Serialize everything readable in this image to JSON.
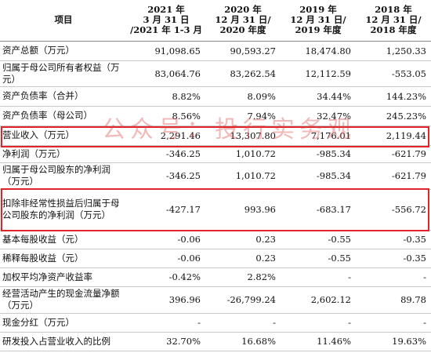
{
  "columns": {
    "item": "项目",
    "c2021": [
      "2021 年",
      "3 月 31 日",
      "/2021 年 1-3 月"
    ],
    "c2020": [
      "2020 年",
      "12 月 31 日/",
      "2020 年度"
    ],
    "c2019": [
      "2019 年",
      "12 月 31 日/",
      "2019 年度"
    ],
    "c2018": [
      "2018 年",
      "12 月 31 日/",
      "2018 年度"
    ]
  },
  "rows": [
    {
      "label": "资产总额（万元）",
      "values": [
        "91,098.65",
        "90,593.27",
        "18,474.80",
        "1,250.33"
      ]
    },
    {
      "label": "归属于母公司所有者权益（万元）",
      "values": [
        "83,064.76",
        "83,262.54",
        "12,112.59",
        "-553.05"
      ]
    },
    {
      "label": "资产负债率（合并）",
      "values": [
        "8.82%",
        "8.09%",
        "34.44%",
        "144.23%"
      ]
    },
    {
      "label": "资产负债率（母公司）",
      "values": [
        "8.56%",
        "7.94%",
        "32.47%",
        "245.23%"
      ]
    },
    {
      "label": "营业收入（万元）",
      "values": [
        "2,291.46",
        "13,307.80",
        "7,176.01",
        "2,119.44"
      ]
    },
    {
      "label": "净利润（万元）",
      "values": [
        "-346.25",
        "1,010.72",
        "-985.34",
        "-621.79"
      ]
    },
    {
      "label": "归属于母公司股东的净利润（万元）",
      "values": [
        "-346.25",
        "1,010.72",
        "-985.34",
        "-621.79"
      ]
    },
    {
      "label": "扣除非经常性损益后归属于母公司股东的净利润（万元）",
      "values": [
        "-427.17",
        "993.96",
        "-683.17",
        "-556.72"
      ]
    },
    {
      "label": "基本每股收益（元）",
      "values": [
        "-0.06",
        "0.23",
        "-0.55",
        "-0.35"
      ]
    },
    {
      "label": "稀释每股收益（元）",
      "values": [
        "-0.06",
        "0.23",
        "-0.55",
        "-0.35"
      ]
    },
    {
      "label": "加权平均净资产收益率",
      "values": [
        "-0.42%",
        "2.82%",
        "-",
        "-"
      ]
    },
    {
      "label": "经营活动产生的现金流量净额（万元）",
      "values": [
        "396.96",
        "-26,799.24",
        "2,602.12",
        "89.78"
      ]
    },
    {
      "label": "现金分红（万元）",
      "values": [
        "-",
        "-",
        "-",
        "-"
      ]
    },
    {
      "label": "研发投入占营业收入的比例",
      "values": [
        "32.70%",
        "16.68%",
        "11.46%",
        "19.63%"
      ]
    }
  ],
  "watermark": "公众号：投行实务观",
  "colors": {
    "highlight_box": "#e0242a",
    "watermark": "#de4646",
    "grid": "#c9c9c9"
  }
}
